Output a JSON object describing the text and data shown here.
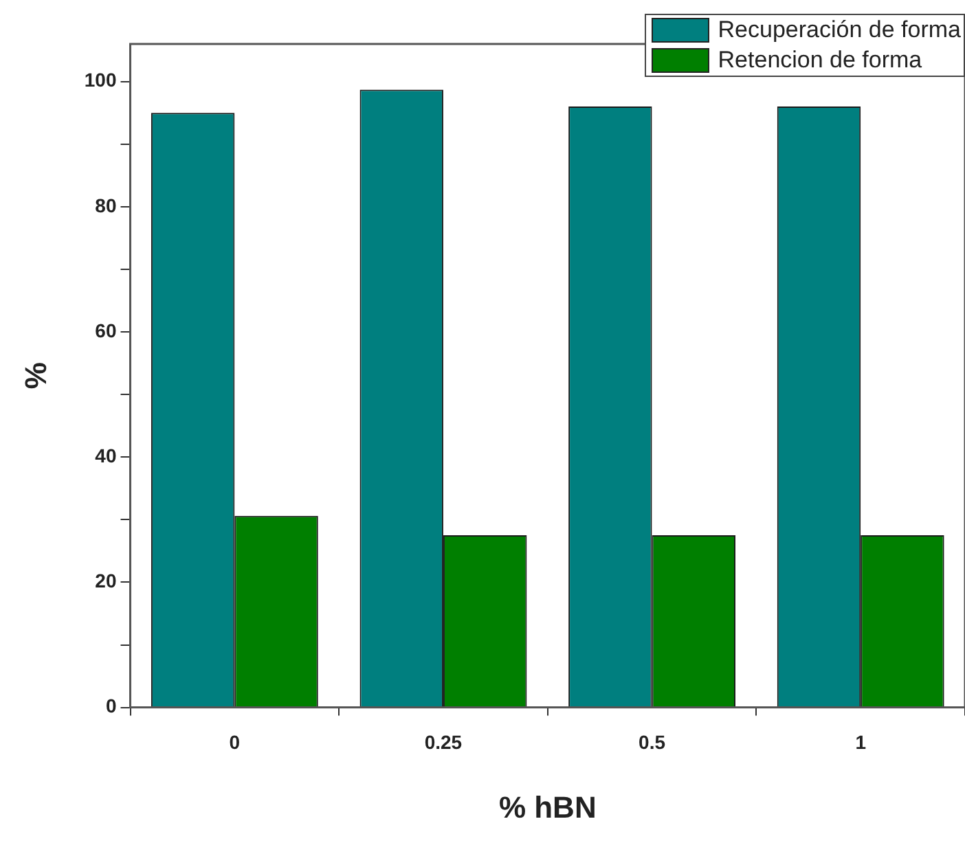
{
  "chart_data": {
    "type": "bar",
    "xlabel": "% hBN",
    "ylabel": "%",
    "categories": [
      "0",
      "0.25",
      "0.5",
      "1"
    ],
    "series": [
      {
        "name": "Recuperación de forma",
        "color": "#007f7f",
        "values": [
          95,
          98.7,
          96,
          96
        ]
      },
      {
        "name": "Retencion de forma",
        "color": "#007f00",
        "values": [
          30.6,
          27.5,
          27.5,
          27.5
        ]
      }
    ],
    "ylim": [
      0,
      106
    ],
    "yticks": [
      0,
      {
        "value": 10,
        "label": null
      },
      20,
      {
        "value": 30,
        "label": null
      },
      40,
      {
        "value": 50,
        "label": null
      },
      60,
      {
        "value": 70,
        "label": null
      },
      80,
      {
        "value": 90,
        "label": null
      },
      100
    ],
    "grid": false,
    "legend": "top right"
  }
}
